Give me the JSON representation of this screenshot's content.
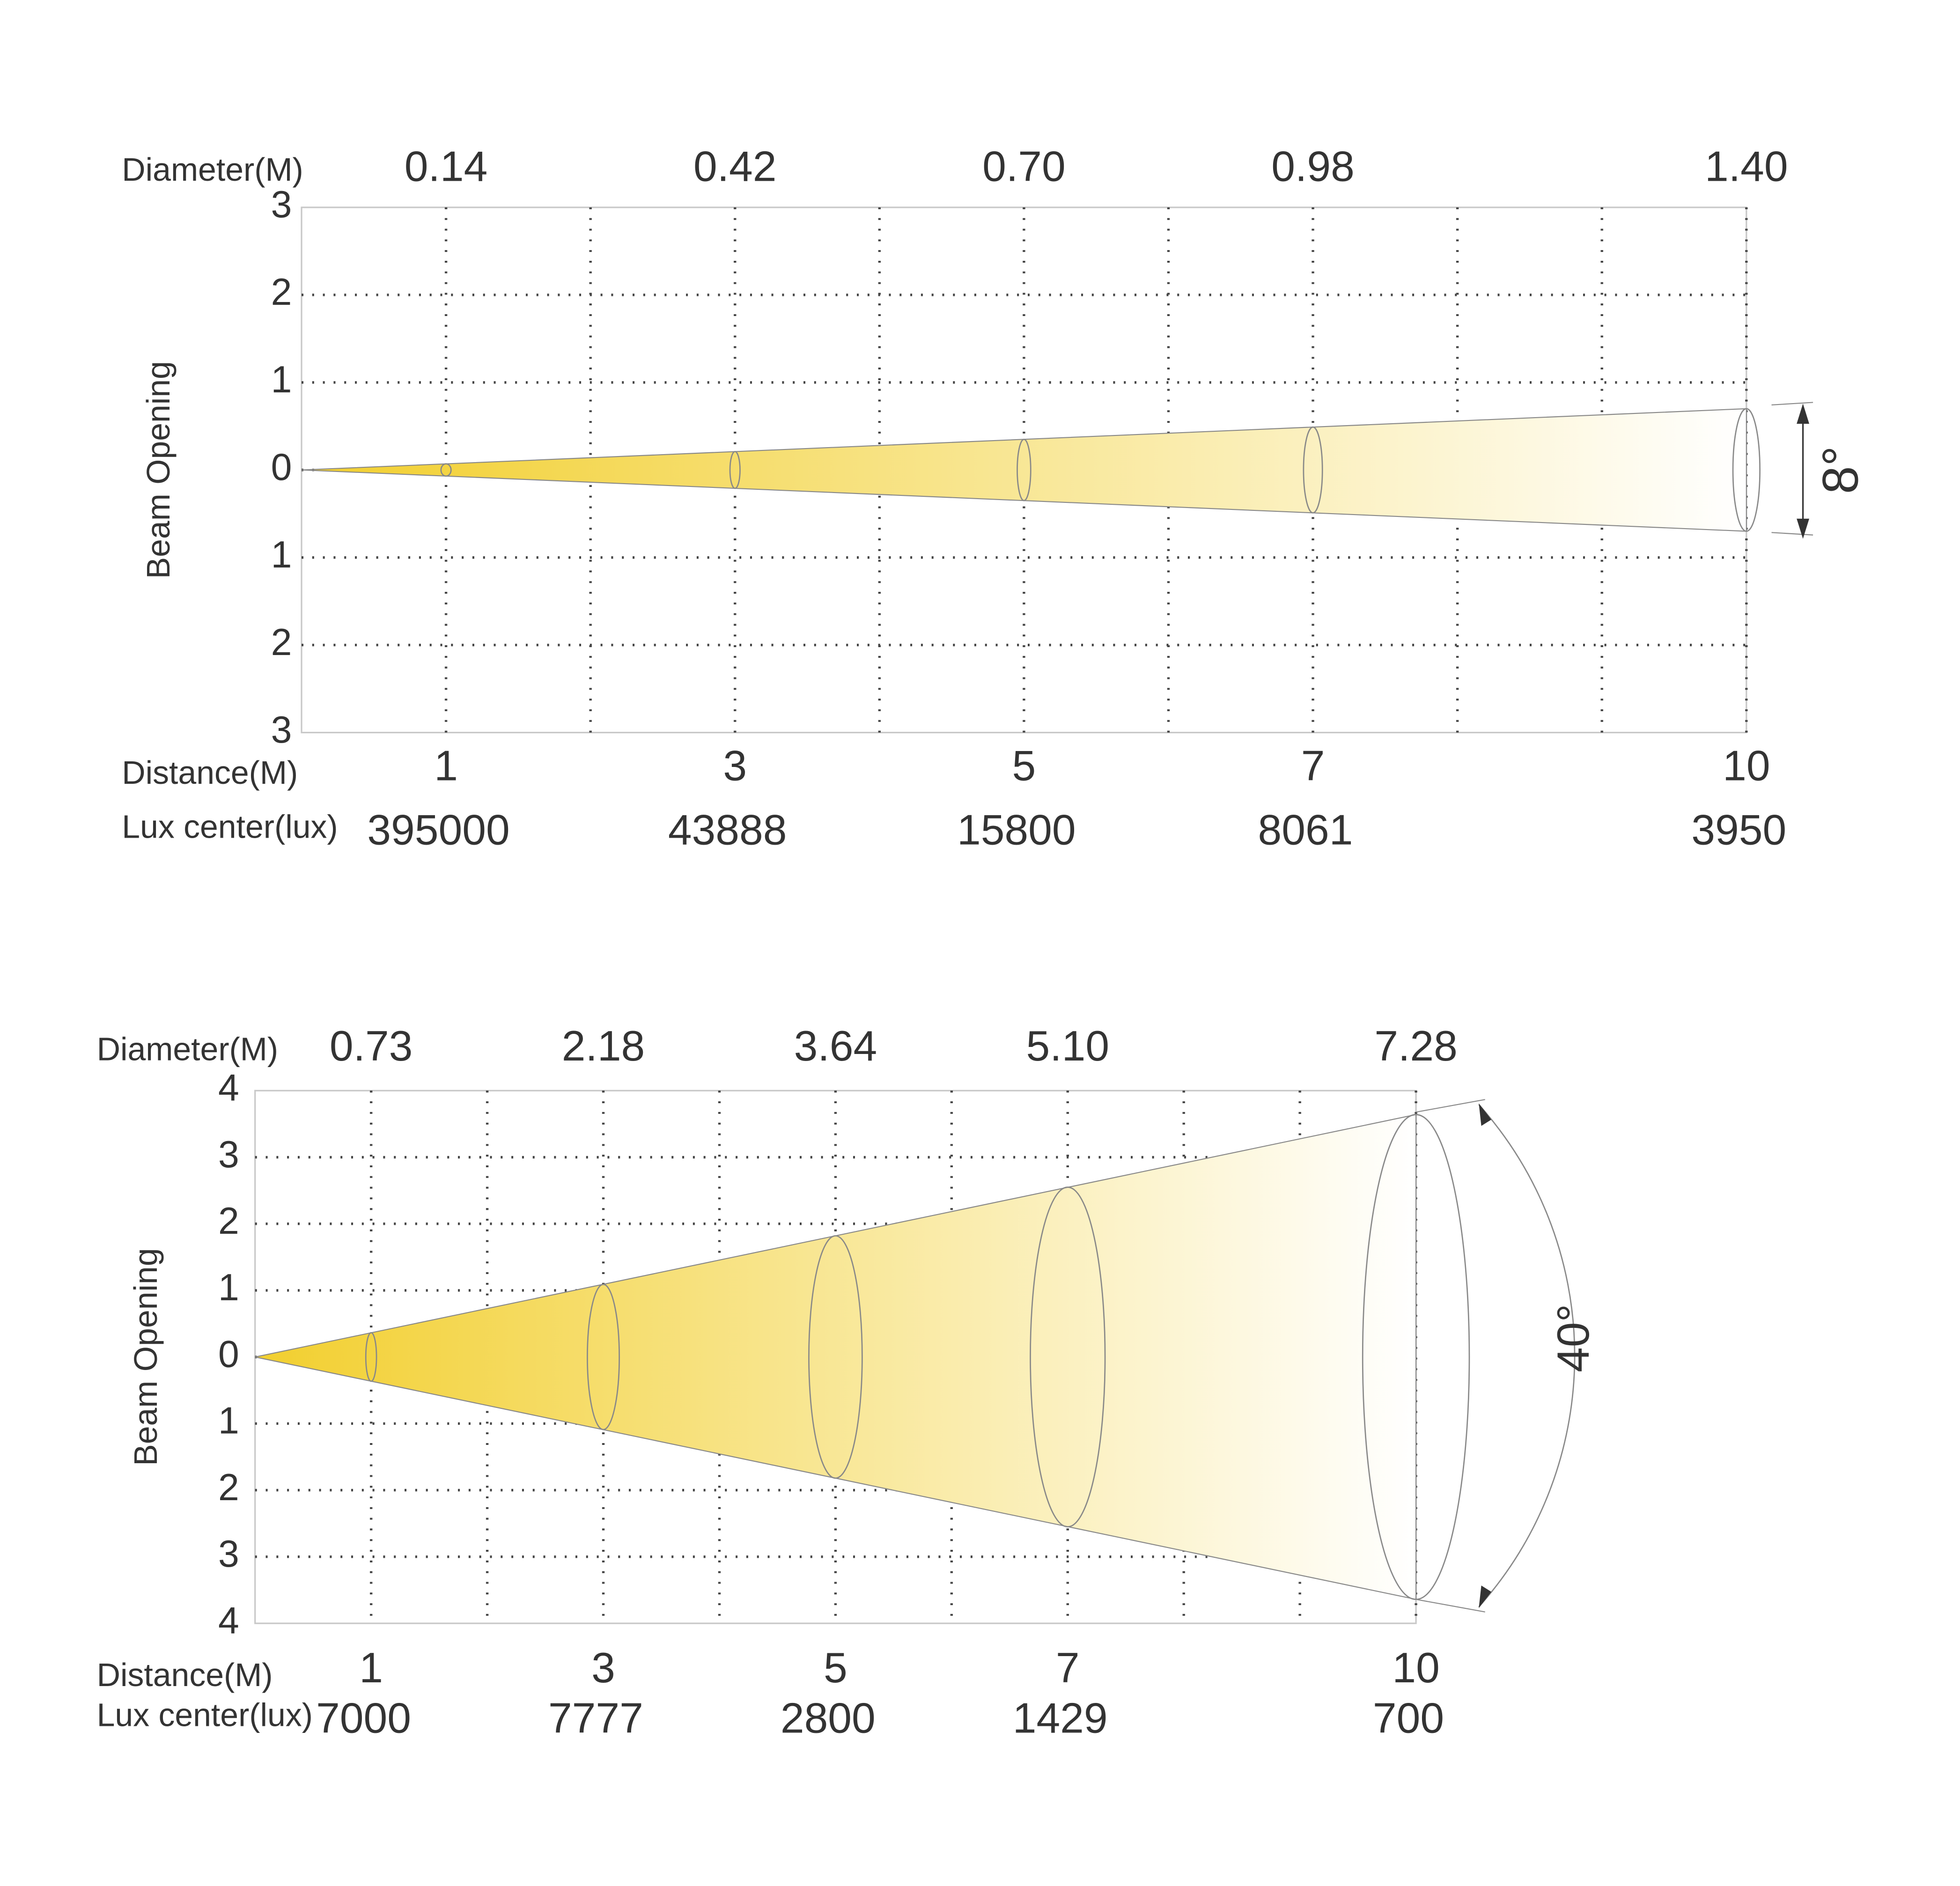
{
  "chart_data": [
    {
      "type": "beam",
      "diameter_label": "Diameter(M)",
      "diameters": [
        0.14,
        0.42,
        {
          "value": 0.7,
          "label": "0.70"
        },
        0.98,
        {
          "value": 1.4,
          "label": "1.40"
        }
      ],
      "distance_label": "Distance(M)",
      "distances": [
        1,
        3,
        5,
        7,
        10
      ],
      "lux_label": "Lux center(lux)",
      "lux": [
        395000,
        43888,
        15800,
        8061,
        3950
      ],
      "y_label": "Beam Opening",
      "beam_angle_label": "8°",
      "xlim": [
        0,
        10
      ],
      "xticks": [
        1,
        2,
        3,
        4,
        5,
        6,
        7,
        8,
        9,
        10
      ],
      "ylim": [
        -3,
        3
      ],
      "yticks": [
        3,
        2,
        1,
        0,
        {
          "value": -1,
          "label": "1"
        },
        {
          "value": -2,
          "label": "2"
        },
        {
          "value": -3,
          "label": "3"
        }
      ],
      "color": "#f2cf2e",
      "grid": true
    },
    {
      "type": "beam",
      "diameter_label": "Diameter(M)",
      "diameters": [
        0.73,
        2.18,
        3.64,
        {
          "value": 5.1,
          "label": "5.10"
        },
        7.28
      ],
      "distance_label": "Distance(M)",
      "distances": [
        1,
        3,
        5,
        7,
        10
      ],
      "lux_label": "Lux center(lux)",
      "lux": [
        7000,
        7777,
        2800,
        1429,
        700
      ],
      "y_label": "Beam Opening",
      "beam_angle_label": "40°",
      "xlim": [
        0,
        10
      ],
      "xticks": [
        1,
        2,
        3,
        4,
        5,
        6,
        7,
        8,
        9,
        10
      ],
      "ylim": [
        -4,
        4
      ],
      "yticks": [
        4,
        3,
        2,
        1,
        0,
        {
          "value": -1,
          "label": "1"
        },
        {
          "value": -2,
          "label": "2"
        },
        {
          "value": -3,
          "label": "3"
        },
        {
          "value": -4,
          "label": "4"
        }
      ],
      "color": "#f2cf2e",
      "grid": true
    }
  ]
}
